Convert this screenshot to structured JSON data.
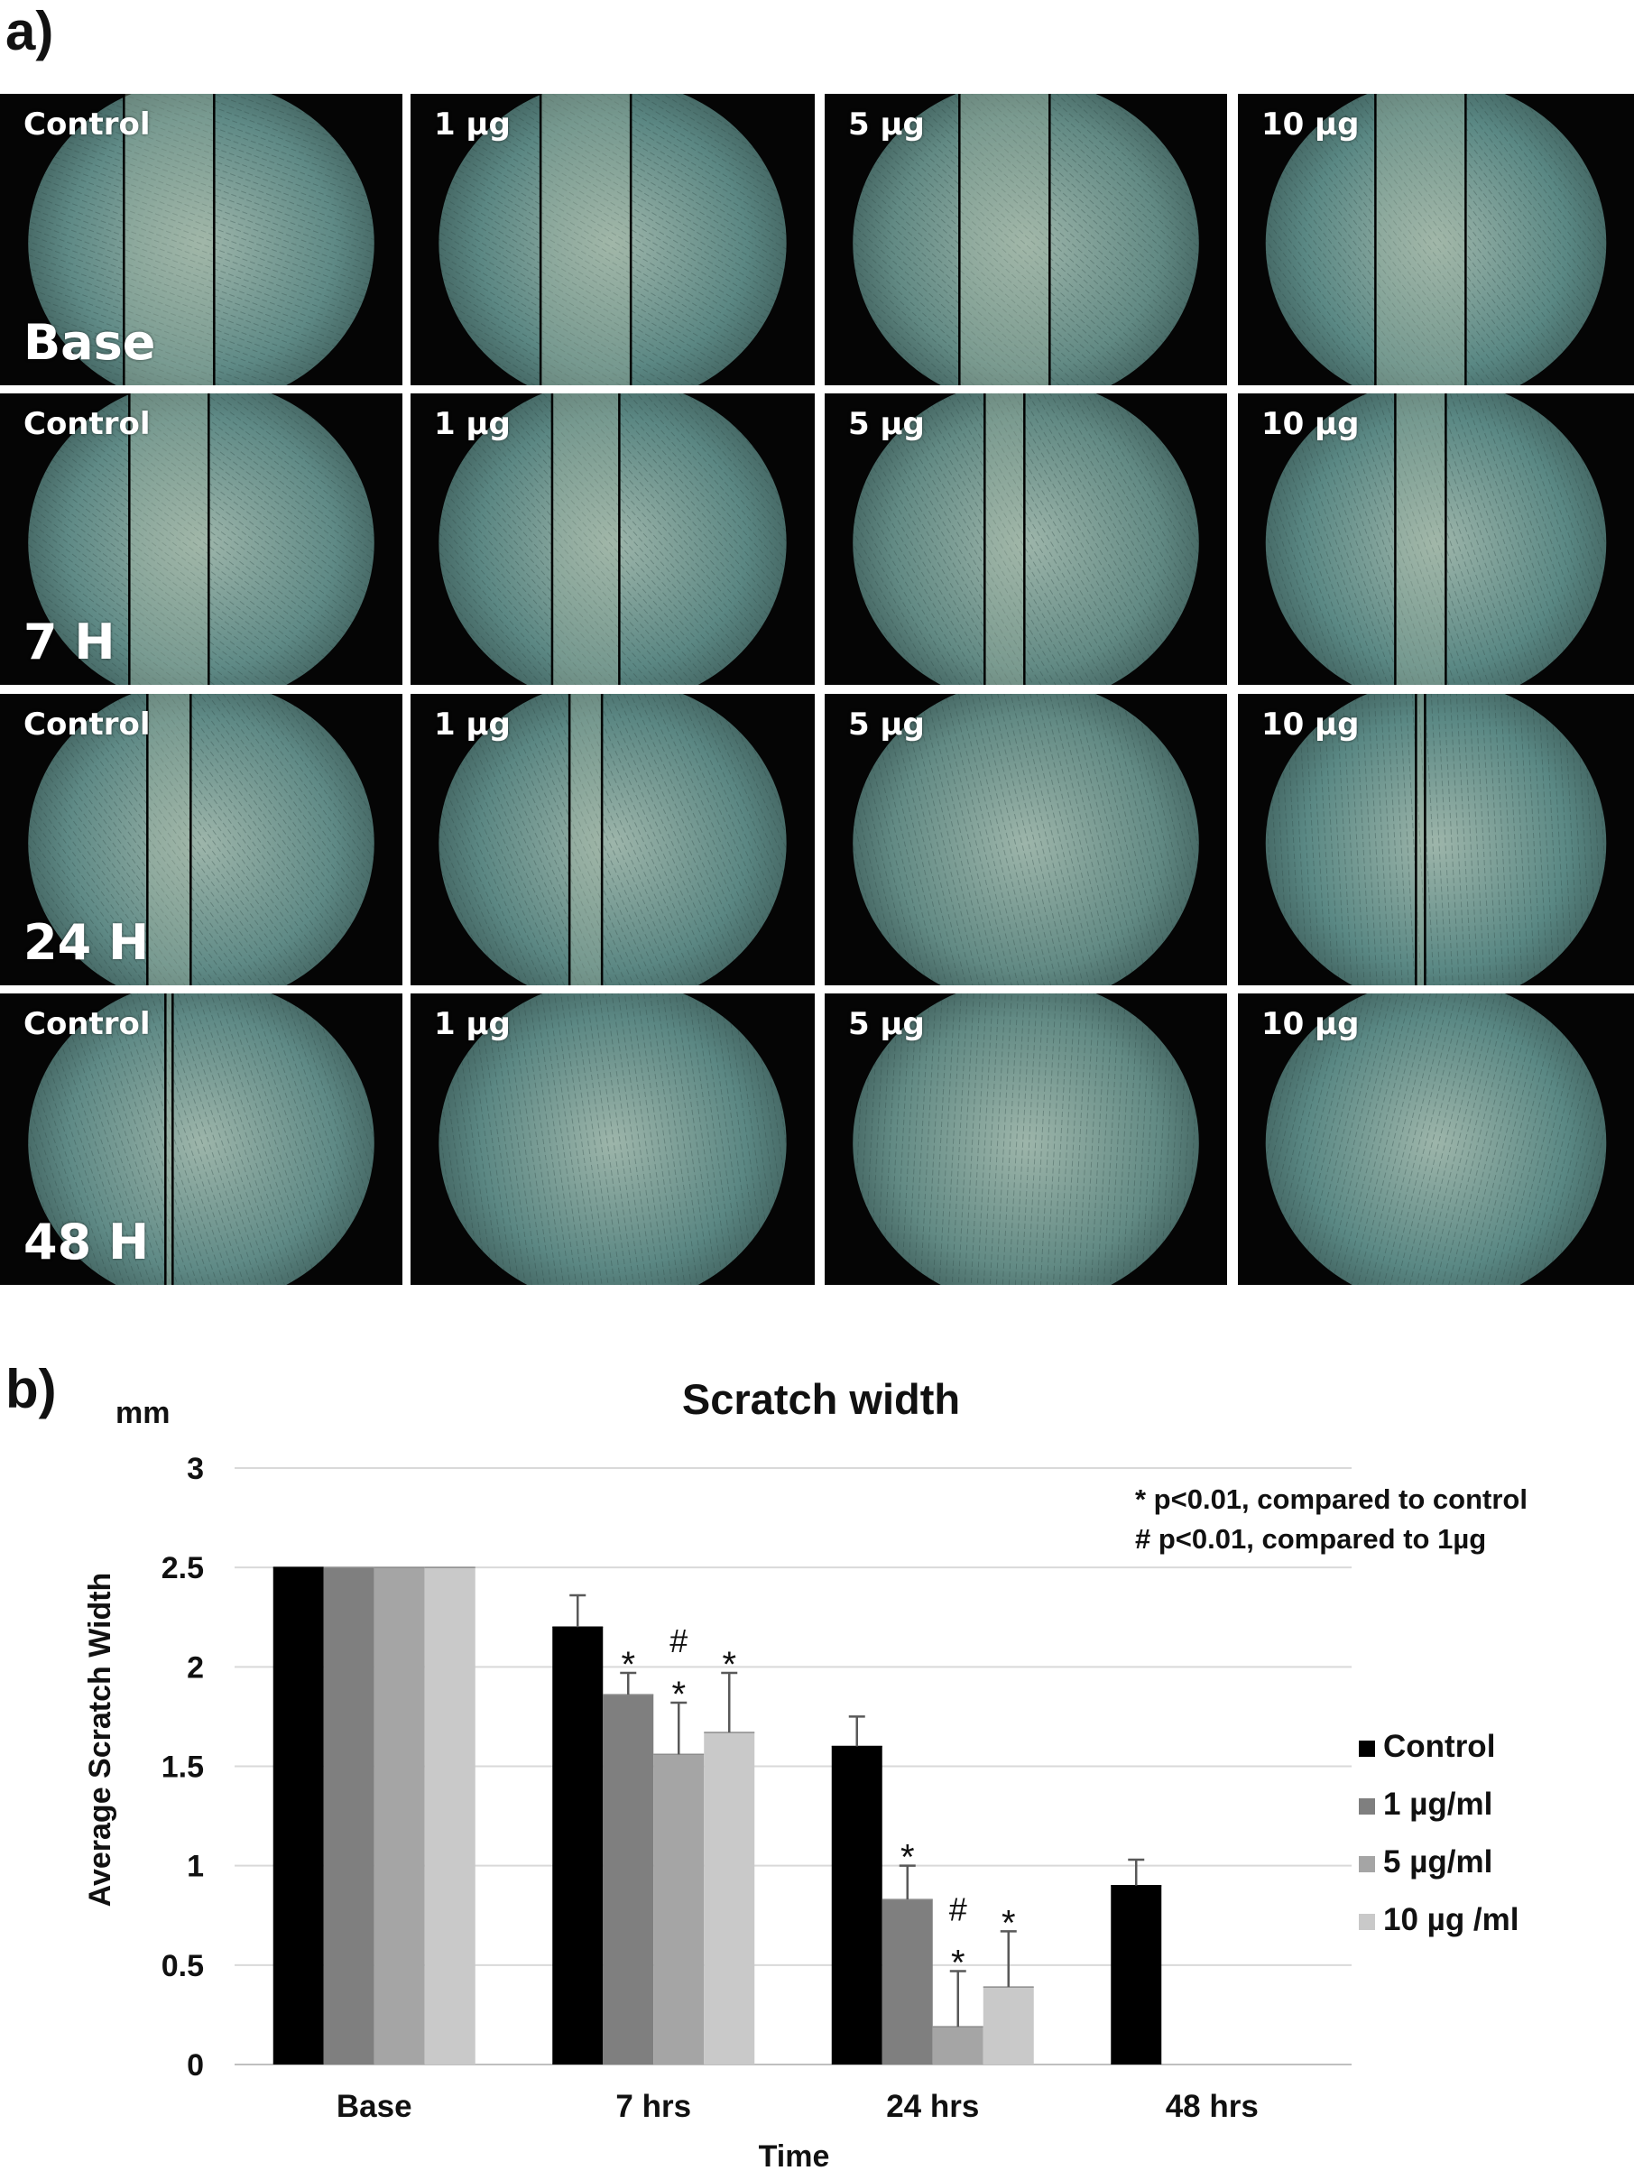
{
  "panel_a": {
    "label": "a)",
    "rows": [
      {
        "time_label": "Base",
        "cells": [
          {
            "dose": "Control",
            "scratch_mm": 2.5
          },
          {
            "dose": "1 µg",
            "scratch_mm": 2.5
          },
          {
            "dose": "5 µg",
            "scratch_mm": 2.5
          },
          {
            "dose": "10 µg",
            "scratch_mm": 2.5
          }
        ]
      },
      {
        "time_label": "7 H",
        "cells": [
          {
            "dose": "Control",
            "scratch_mm": 2.2
          },
          {
            "dose": "1 µg",
            "scratch_mm": 1.86
          },
          {
            "dose": "5 µg",
            "scratch_mm": 1.1
          },
          {
            "dose": "10 µg",
            "scratch_mm": 1.4
          }
        ]
      },
      {
        "time_label": "24 H",
        "cells": [
          {
            "dose": "Control",
            "scratch_mm": 1.2
          },
          {
            "dose": "1 µg",
            "scratch_mm": 0.9
          },
          {
            "dose": "5 µg",
            "scratch_mm": 0
          },
          {
            "dose": "10 µg",
            "scratch_mm": 0.25
          }
        ]
      },
      {
        "time_label": "48 H",
        "cells": [
          {
            "dose": "Control",
            "scratch_mm": 0.2
          },
          {
            "dose": "1 µg",
            "scratch_mm": 0
          },
          {
            "dose": "5 µg",
            "scratch_mm": 0
          },
          {
            "dose": "10 µg",
            "scratch_mm": 0
          }
        ]
      }
    ]
  },
  "panel_b": {
    "label": "b)"
  },
  "chart_data": {
    "type": "bar",
    "title": "Scratch width",
    "unit_label": "mm",
    "xlabel": "Time",
    "ylabel": "Average Scratch Width",
    "ylim": [
      0,
      3
    ],
    "yticks": [
      "0",
      "0.5",
      "1",
      "1.5",
      "2",
      "2.5",
      "3"
    ],
    "ytick_values": [
      0,
      0.5,
      1,
      1.5,
      2,
      2.5,
      3
    ],
    "grid": true,
    "legend_position": "right",
    "categories": [
      "Base",
      "7 hrs",
      "24 hrs",
      "48 hrs"
    ],
    "series": [
      {
        "name": "Control",
        "color": "#000000",
        "values": [
          2.5,
          2.2,
          1.6,
          0.9
        ],
        "errors": [
          0,
          0.16,
          0.15,
          0.13
        ]
      },
      {
        "name": "1 µg/ml",
        "color": "#7f7f7f",
        "values": [
          2.5,
          1.86,
          0.83,
          0
        ],
        "errors": [
          0,
          0.11,
          0.17,
          0
        ]
      },
      {
        "name": "5 µg/ml",
        "color": "#a5a5a5",
        "values": [
          2.5,
          1.56,
          0.19,
          0
        ],
        "errors": [
          0,
          0.26,
          0.28,
          0
        ]
      },
      {
        "name": "10 µg /ml",
        "color": "#c9c9c9",
        "values": [
          2.5,
          1.67,
          0.39,
          0
        ],
        "errors": [
          0,
          0.3,
          0.28,
          0
        ]
      }
    ],
    "significance_markers": [
      {
        "category": 1,
        "series": 1,
        "marks": [
          "*"
        ]
      },
      {
        "category": 1,
        "series": 2,
        "marks": [
          "#",
          "*"
        ]
      },
      {
        "category": 1,
        "series": 3,
        "marks": [
          "*"
        ]
      },
      {
        "category": 2,
        "series": 1,
        "marks": [
          "*"
        ]
      },
      {
        "category": 2,
        "series": 2,
        "marks": [
          "#",
          "*"
        ]
      },
      {
        "category": 2,
        "series": 3,
        "marks": [
          "*"
        ]
      }
    ],
    "annotations": [
      "* p<0.01, compared to control",
      "# p<0.01, compared to 1µg"
    ]
  }
}
